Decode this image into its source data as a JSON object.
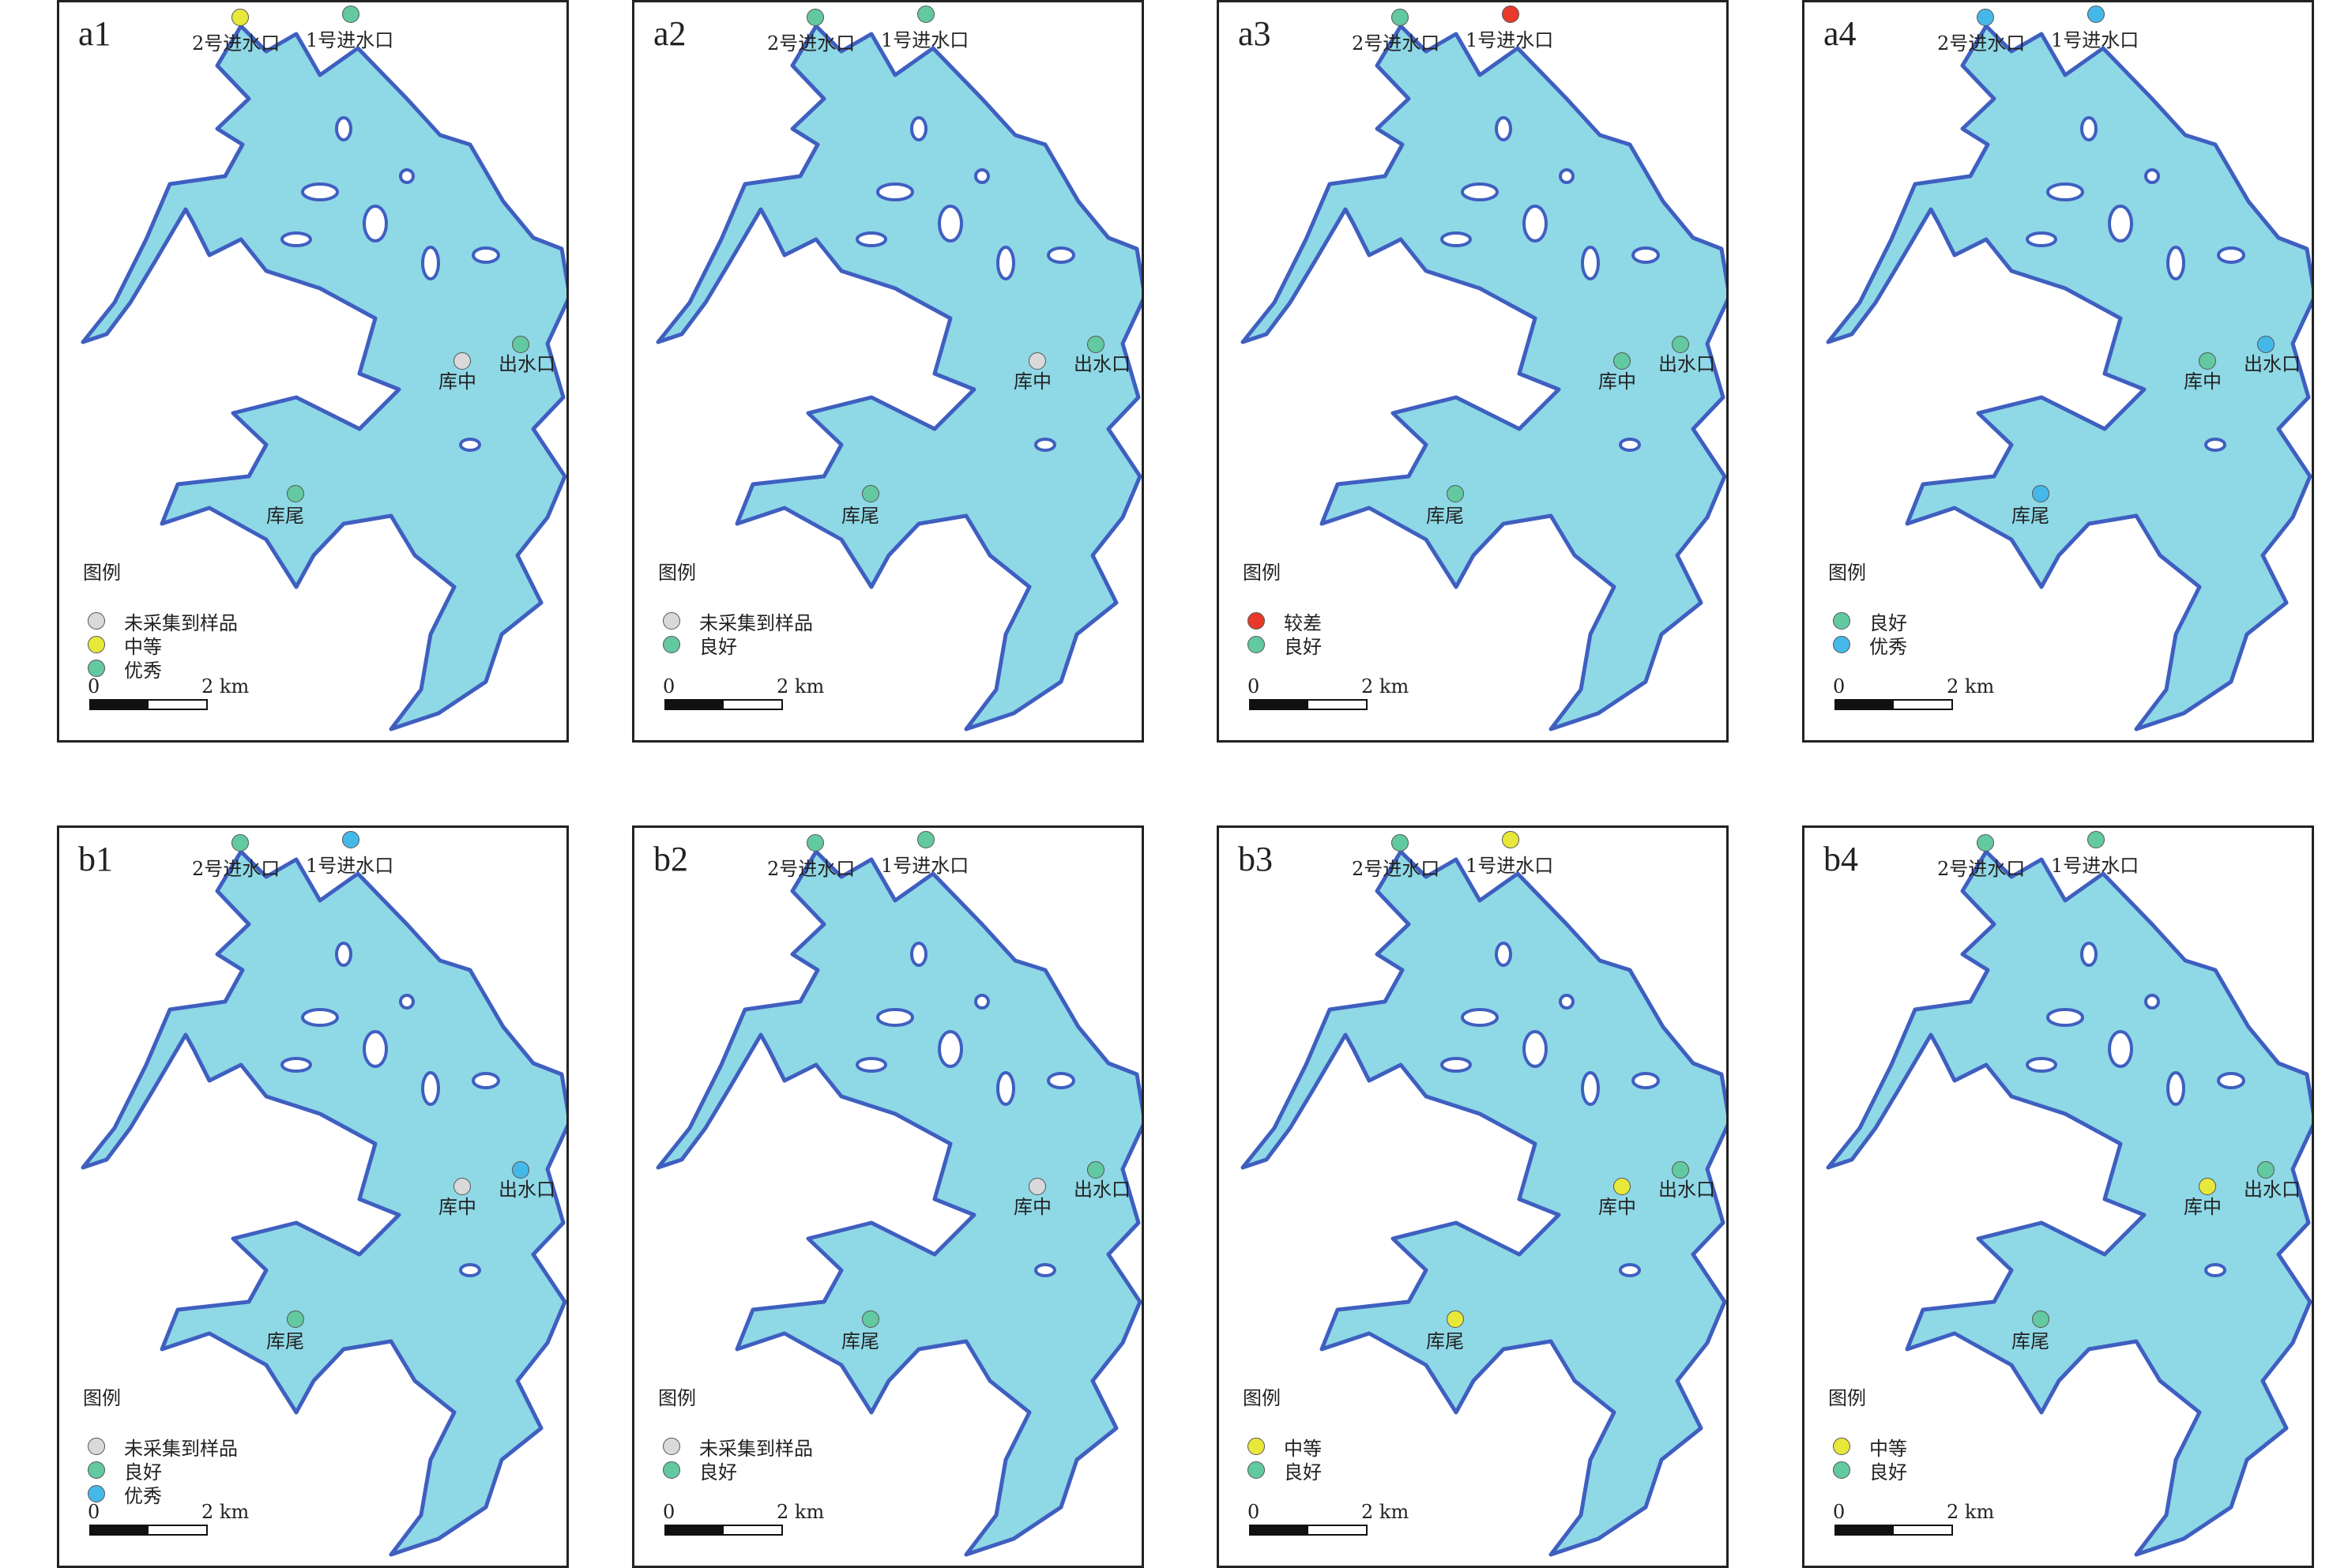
{
  "categories": {
    "未采集到样品": "#d9d9d9",
    "中等": "#e8e83a",
    "优秀_a1": "#62c9a0",
    "良好": "#62c9a0",
    "优秀": "#45b8ea",
    "较差": "#e8392a"
  },
  "site_labels": {
    "inlet2": "2号进水口",
    "inlet1": "1号进水口",
    "center": "库中",
    "outlet": "出水口",
    "tail": "库尾"
  },
  "legend_title": "图例",
  "scale": {
    "zero": "0",
    "dist": "2 km"
  },
  "panels": [
    {
      "label": "a1",
      "points": {
        "inlet2": "中等",
        "inlet1": "优秀_a1",
        "center": "未采集到样品",
        "outlet": "优秀_a1",
        "tail": "优秀_a1"
      },
      "legend": [
        {
          "text": "未采集到样品",
          "cat": "未采集到样品"
        },
        {
          "text": "中等",
          "cat": "中等"
        },
        {
          "text": "优秀",
          "cat": "优秀_a1"
        }
      ]
    },
    {
      "label": "a2",
      "points": {
        "inlet2": "良好",
        "inlet1": "良好",
        "center": "未采集到样品",
        "outlet": "良好",
        "tail": "良好"
      },
      "legend": [
        {
          "text": "未采集到样品",
          "cat": "未采集到样品"
        },
        {
          "text": "良好",
          "cat": "良好"
        }
      ]
    },
    {
      "label": "a3",
      "points": {
        "inlet2": "良好",
        "inlet1": "较差",
        "center": "良好",
        "outlet": "良好",
        "tail": "良好"
      },
      "legend": [
        {
          "text": "较差",
          "cat": "较差"
        },
        {
          "text": "良好",
          "cat": "良好"
        }
      ]
    },
    {
      "label": "a4",
      "points": {
        "inlet2": "优秀",
        "inlet1": "优秀",
        "center": "良好",
        "outlet": "优秀",
        "tail": "优秀"
      },
      "legend": [
        {
          "text": "良好",
          "cat": "良好"
        },
        {
          "text": "优秀",
          "cat": "优秀"
        }
      ]
    },
    {
      "label": "b1",
      "points": {
        "inlet2": "良好",
        "inlet1": "优秀",
        "center": "未采集到样品",
        "outlet": "优秀",
        "tail": "良好"
      },
      "legend": [
        {
          "text": "未采集到样品",
          "cat": "未采集到样品"
        },
        {
          "text": "良好",
          "cat": "良好"
        },
        {
          "text": "优秀",
          "cat": "优秀"
        }
      ]
    },
    {
      "label": "b2",
      "points": {
        "inlet2": "良好",
        "inlet1": "良好",
        "center": "未采集到样品",
        "outlet": "良好",
        "tail": "良好"
      },
      "legend": [
        {
          "text": "未采集到样品",
          "cat": "未采集到样品"
        },
        {
          "text": "良好",
          "cat": "良好"
        }
      ]
    },
    {
      "label": "b3",
      "points": {
        "inlet2": "良好",
        "inlet1": "中等",
        "center": "中等",
        "outlet": "良好",
        "tail": "中等"
      },
      "legend": [
        {
          "text": "中等",
          "cat": "中等"
        },
        {
          "text": "良好",
          "cat": "良好"
        }
      ]
    },
    {
      "label": "b4",
      "points": {
        "inlet2": "良好",
        "inlet1": "良好",
        "center": "中等",
        "outlet": "良好",
        "tail": "良好"
      },
      "legend": [
        {
          "text": "中等",
          "cat": "中等"
        },
        {
          "text": "良好",
          "cat": "良好"
        }
      ]
    }
  ]
}
